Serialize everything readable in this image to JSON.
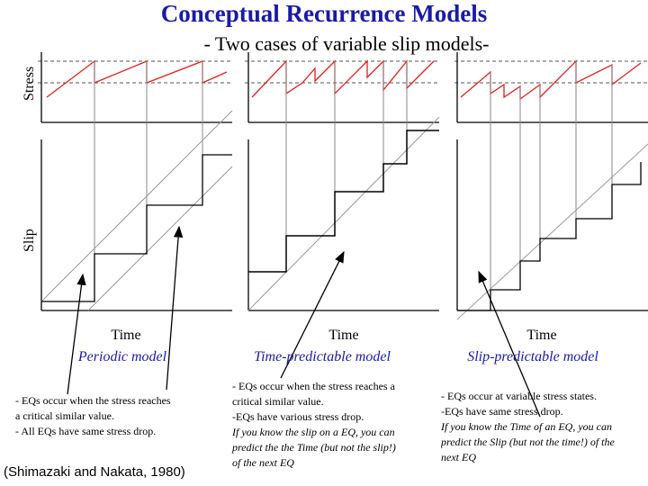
{
  "title": "Conceptual Recurrence Models",
  "subtitle": "- Two cases of variable slip models-",
  "axes": {
    "stress_label": "Stress",
    "slip_label": "Slip",
    "time_label": "Time"
  },
  "panels": [
    {
      "model": "Periodic model",
      "description": [
        "- EQs occur when the stress reaches",
        "a critical similar value.",
        "- All EQs have same stress drop."
      ],
      "italic_lines": []
    },
    {
      "model": "Time-predictable model",
      "description": [
        "- EQs occur when the stress reaches a",
        "critical similar value.",
        "-EQs have various stress drop."
      ],
      "italic_lines": [
        "If you know the slip on a EQ, you can",
        "predict the the Time (but not the slip!)",
        "of the next EQ"
      ]
    },
    {
      "model": "Slip-predictable model",
      "description": [
        "- EQs occur at variable stress states.",
        "-EQs have same stress drop."
      ],
      "italic_lines": [
        "If you know the Time of an EQ, you can",
        "predict the Slip (but not the time!) of the",
        "next EQ"
      ]
    }
  ],
  "citation": "(Shimazaki and Nakata, 1980)",
  "colors": {
    "title": "#1a1aa6",
    "stress_curve": "#e02020",
    "threshold": "#555555",
    "guide": "#888888"
  }
}
